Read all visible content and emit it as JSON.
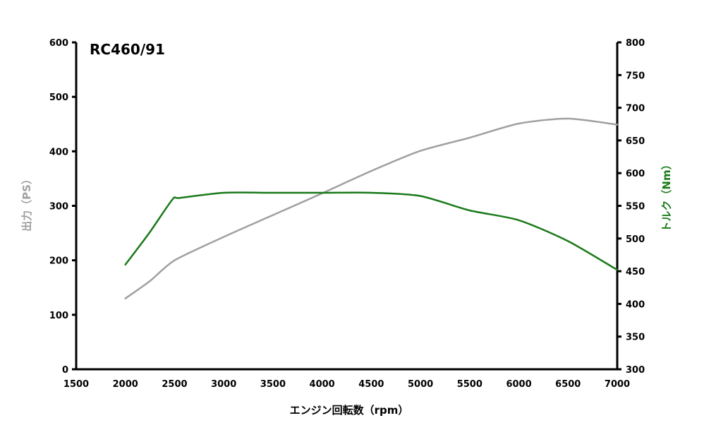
{
  "chart_data": {
    "type": "line",
    "title": "RC460/91",
    "xlabel": "エンジン回転数（rpm）",
    "ylabel_left": "出力（PS）",
    "ylabel_right": "トルク（Nm）",
    "xlim": [
      1500,
      7000
    ],
    "ylim_left": [
      0,
      600
    ],
    "ylim_right": [
      300,
      800
    ],
    "x_ticks": [
      "1500",
      "2000",
      "2500",
      "3000",
      "3500",
      "4000",
      "4500",
      "5000",
      "5500",
      "6000",
      "6500",
      "7000"
    ],
    "y_left_ticks": [
      "0",
      "100",
      "200",
      "300",
      "400",
      "500",
      "600"
    ],
    "y_right_ticks": [
      "300",
      "350",
      "400",
      "450",
      "500",
      "550",
      "600",
      "650",
      "700",
      "750",
      "800"
    ],
    "grid": false,
    "series": [
      {
        "name": "出力（PS）",
        "axis": "left",
        "color": "#a0a0a0",
        "x": [
          2000,
          2250,
          2500,
          3000,
          3500,
          4000,
          4500,
          5000,
          5500,
          6000,
          6500,
          7000
        ],
        "values": [
          130,
          162,
          200,
          243,
          283,
          323,
          364,
          401,
          425,
          451,
          460,
          449
        ]
      },
      {
        "name": "トルク（Nm）",
        "axis": "right",
        "color": "#1a7a1a",
        "x": [
          2000,
          2250,
          2480,
          2550,
          3000,
          3500,
          4000,
          4500,
          5000,
          5500,
          6000,
          6500,
          7000
        ],
        "values": [
          460,
          510,
          560,
          562,
          570,
          570,
          570,
          570,
          565,
          543,
          528,
          496,
          452
        ]
      }
    ]
  }
}
